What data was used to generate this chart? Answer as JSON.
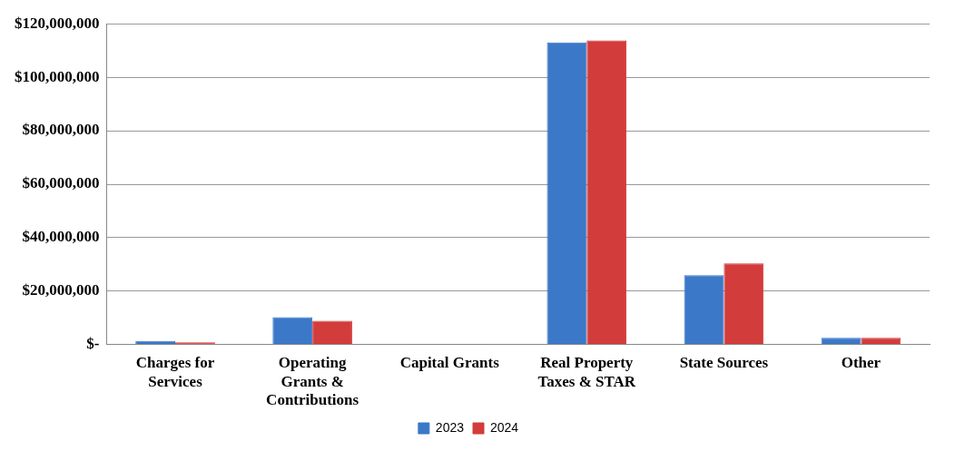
{
  "chart_data": {
    "type": "bar",
    "categories": [
      "Charges for Services",
      "Operating Grants & Contributions",
      "Capital Grants",
      "Real Property Taxes & STAR",
      "State Sources",
      "Other"
    ],
    "series": [
      {
        "name": "2023",
        "color": "#3b78c8",
        "values": [
          1400000,
          10300000,
          300000,
          113000000,
          26000000,
          2600000
        ]
      },
      {
        "name": "2024",
        "color": "#d23c3a",
        "values": [
          900000,
          8900000,
          300000,
          113800000,
          30400000,
          2600000
        ]
      }
    ],
    "ylim": [
      0,
      120000000
    ],
    "yticks": [
      {
        "value": 0,
        "label": "$-"
      },
      {
        "value": 20000000,
        "label": "$20,000,000"
      },
      {
        "value": 40000000,
        "label": "$40,000,000"
      },
      {
        "value": 60000000,
        "label": "$60,000,000"
      },
      {
        "value": 80000000,
        "label": "$80,000,000"
      },
      {
        "value": 100000000,
        "label": "$100,000,000"
      },
      {
        "value": 120000000,
        "label": "$120,000,000"
      }
    ],
    "grid": "y",
    "legend": "bottom"
  }
}
